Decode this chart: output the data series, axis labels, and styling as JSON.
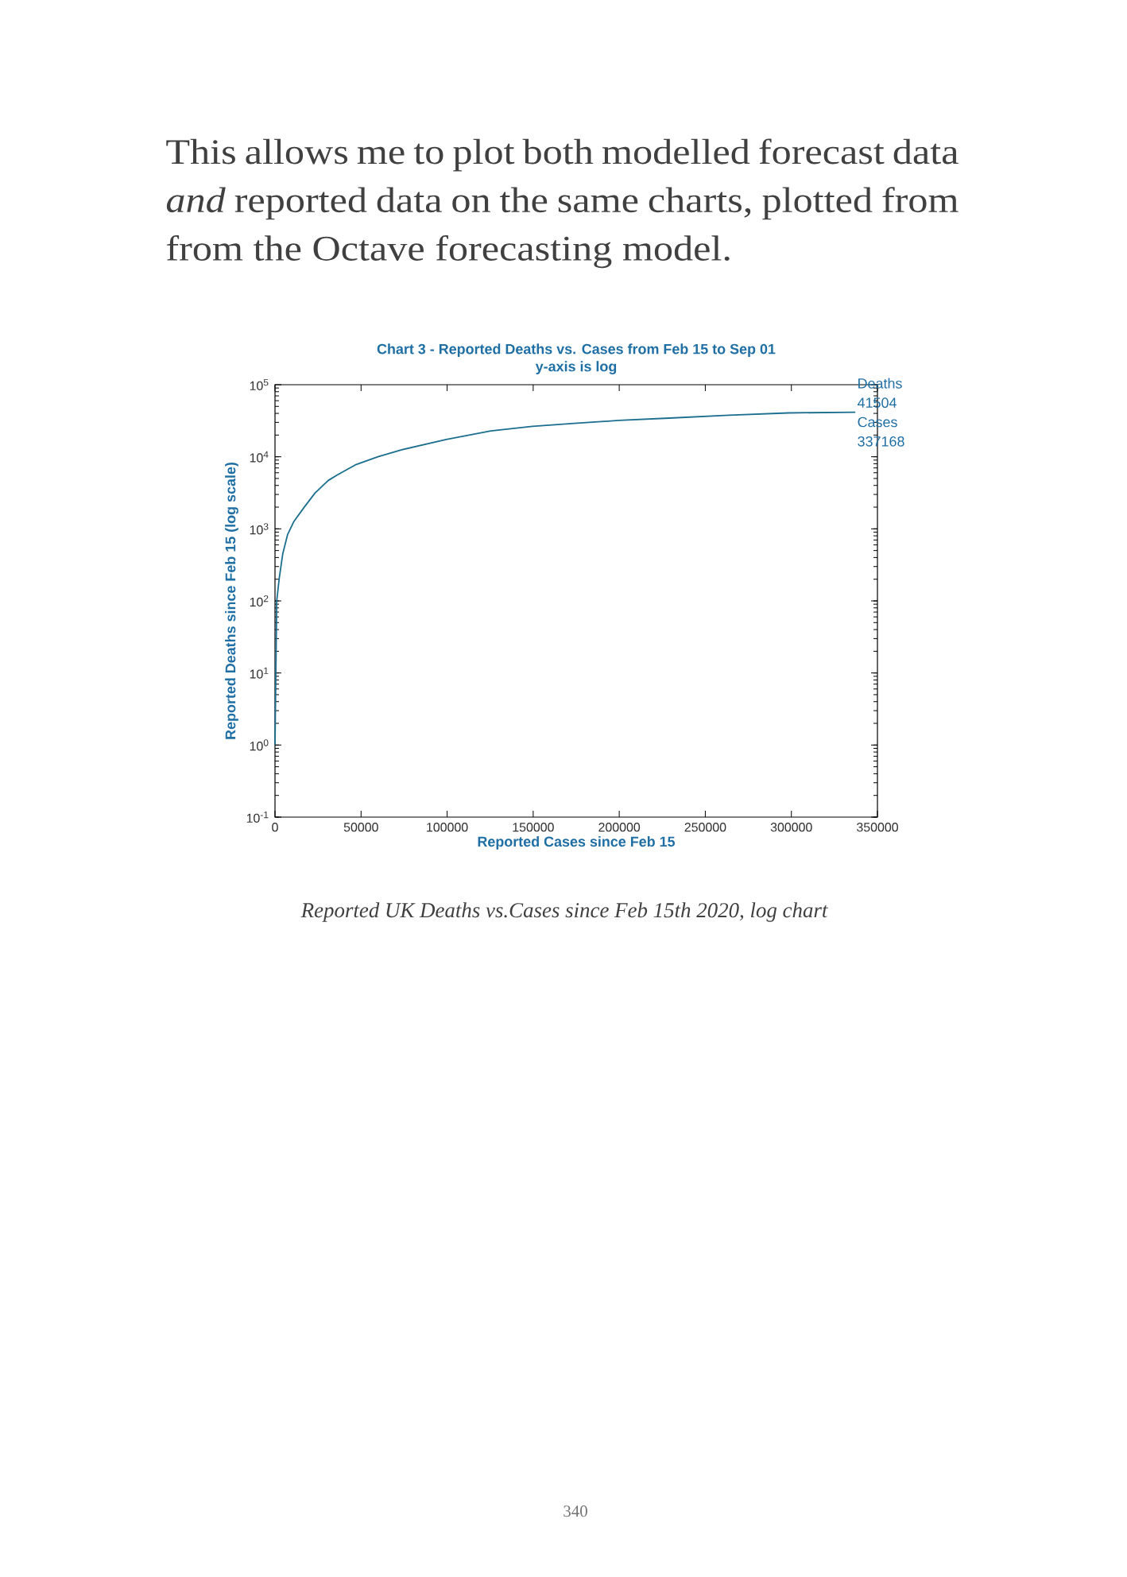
{
  "chart_data": {
    "type": "line",
    "title": "Chart 3 - Reported Deaths vs. Cases from Feb 15 to Sep 01",
    "subtitle": "y-axis is log",
    "xlabel": "Reported Cases since Feb 15",
    "ylabel": "Reported Deaths since Feb 15 (log scale)",
    "x": [
      0,
      1000,
      2500,
      4500,
      7300,
      11000,
      16800,
      23300,
      31000,
      36200,
      46600,
      59800,
      73600,
      99500,
      125400,
      149600,
      173800,
      199700,
      229100,
      263700,
      298200,
      337168
    ],
    "values": [
      1,
      100,
      210,
      450,
      830,
      1270,
      1970,
      3150,
      4700,
      5600,
      7700,
      10000,
      12500,
      17400,
      22900,
      26500,
      29100,
      31900,
      34400,
      37700,
      40600,
      41504
    ],
    "color": "#1b6e8e",
    "log": "y",
    "xlim": [
      0,
      350000
    ],
    "ylim": [
      0.1,
      100000
    ],
    "xticks": [
      0,
      50000,
      100000,
      150000,
      200000,
      250000,
      300000,
      350000
    ],
    "yticks": [
      {
        "value": 0.1,
        "label": "10$^{-1}$"
      },
      {
        "value": 1,
        "label": "10$^{0}$"
      },
      {
        "value": 10,
        "label": "10$^{1}$"
      },
      {
        "value": 100,
        "label": "10$^{2}$"
      },
      {
        "value": 1000,
        "label": "10$^{3}$"
      },
      {
        "value": 10000,
        "label": "10$^{4}$"
      },
      {
        "value": 100000,
        "label": "10$^{5}$"
      }
    ],
    "annotations": [
      {
        "text": "Deaths 41504 Cases 337168",
        "x": 337168,
        "y": 41504
      },
      "This allows me to plot both modelled forecast data *and* reported data on the same charts, plotted from from the Octave forecasting model.",
      "Reported UK Deaths vs.Cases since Feb 15th 2020, log chart",
      "340"
    ]
  }
}
